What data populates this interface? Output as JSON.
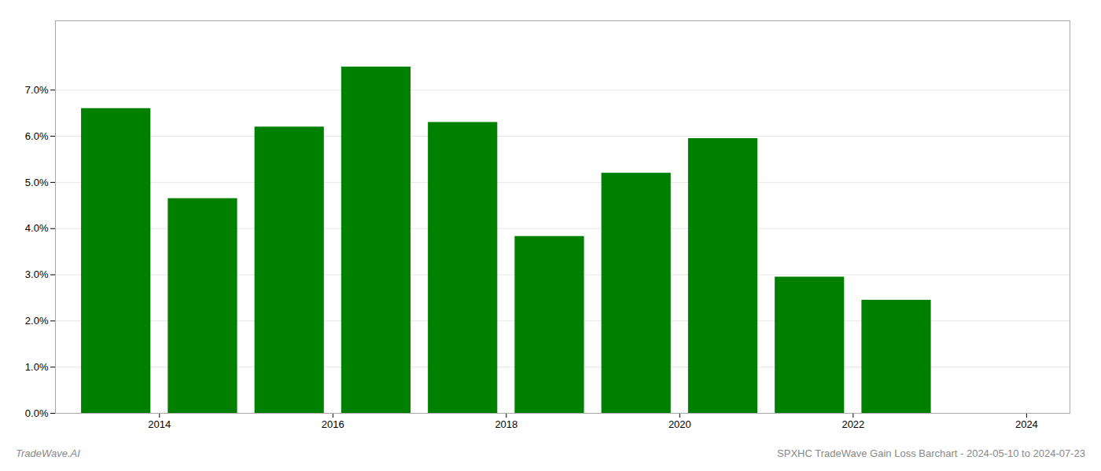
{
  "chart_data": {
    "type": "bar",
    "x": [
      2013.5,
      2014.5,
      2015.5,
      2016.5,
      2017.5,
      2018.5,
      2019.5,
      2020.5,
      2021.5,
      2022.5
    ],
    "values": [
      0.066,
      0.0465,
      0.062,
      0.075,
      0.063,
      0.0383,
      0.052,
      0.0595,
      0.0295,
      0.0245
    ],
    "color": "#008000",
    "xlim": [
      2012.8,
      2024.5
    ],
    "xticks": [
      2014,
      2016,
      2018,
      2020,
      2022,
      2024
    ],
    "ylim": [
      0,
      0.085
    ],
    "yticks": [
      {
        "value": 0.0,
        "label": "0.0%"
      },
      {
        "value": 0.01,
        "label": "1.0%"
      },
      {
        "value": 0.02,
        "label": "2.0%"
      },
      {
        "value": 0.03,
        "label": "3.0%"
      },
      {
        "value": 0.04,
        "label": "4.0%"
      },
      {
        "value": 0.05,
        "label": "5.0%"
      },
      {
        "value": 0.06,
        "label": "6.0%"
      },
      {
        "value": 0.07,
        "label": "7.0%"
      }
    ],
    "grid": true,
    "annotations": [
      "TradeWave.AI",
      "SPXHC TradeWave Gain Loss Barchart - 2024-05-10 to 2024-07-23"
    ]
  }
}
